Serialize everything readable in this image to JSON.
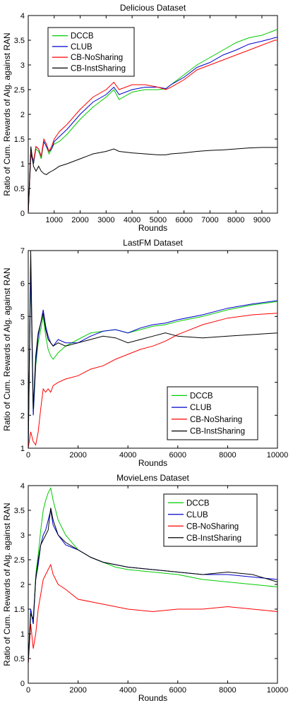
{
  "chart_data": [
    {
      "type": "line",
      "title": "Delicious Dataset",
      "xlabel": "Rounds",
      "ylabel": "Ratio of Cum. Rewards of Alg. against RAN",
      "xlim": [
        0,
        9600
      ],
      "ylim": [
        0,
        4
      ],
      "xticks": [
        1000,
        2000,
        3000,
        4000,
        5000,
        6000,
        7000,
        8000,
        9000
      ],
      "yticks": [
        0,
        0.5,
        1,
        1.5,
        2,
        2.5,
        3,
        3.5,
        4
      ],
      "grid": false,
      "legend_position": "top-left",
      "series": [
        {
          "name": "DCCB",
          "color": "#00cc00",
          "x": [
            0,
            100,
            200,
            300,
            400,
            500,
            600,
            700,
            800,
            900,
            1000,
            1200,
            1500,
            2000,
            2500,
            3000,
            3300,
            3500,
            4000,
            4500,
            5000,
            5300,
            5500,
            6000,
            6500,
            7000,
            7500,
            8000,
            8500,
            9000,
            9500,
            9600
          ],
          "y": [
            0.0,
            1.2,
            1.0,
            1.3,
            1.25,
            1.1,
            1.45,
            1.35,
            1.2,
            1.3,
            1.4,
            1.45,
            1.6,
            1.9,
            2.15,
            2.35,
            2.5,
            2.3,
            2.45,
            2.5,
            2.5,
            2.52,
            2.6,
            2.8,
            3.0,
            3.15,
            3.3,
            3.45,
            3.55,
            3.6,
            3.7,
            3.72
          ]
        },
        {
          "name": "CLUB",
          "color": "#0000cc",
          "x": [
            0,
            100,
            200,
            300,
            400,
            500,
            600,
            700,
            800,
            900,
            1000,
            1200,
            1500,
            2000,
            2500,
            3000,
            3300,
            3500,
            4000,
            4500,
            5000,
            5300,
            5500,
            6000,
            6500,
            7000,
            7500,
            8000,
            8500,
            9000,
            9500,
            9600
          ],
          "y": [
            0.0,
            1.2,
            1.0,
            1.35,
            1.3,
            1.15,
            1.45,
            1.35,
            1.25,
            1.3,
            1.45,
            1.55,
            1.7,
            2.0,
            2.25,
            2.4,
            2.55,
            2.4,
            2.5,
            2.55,
            2.55,
            2.52,
            2.6,
            2.75,
            2.95,
            3.05,
            3.2,
            3.3,
            3.42,
            3.48,
            3.55,
            3.56
          ]
        },
        {
          "name": "CB-NoSharing",
          "color": "#ff0000",
          "x": [
            0,
            100,
            200,
            300,
            400,
            500,
            600,
            700,
            800,
            900,
            1000,
            1200,
            1500,
            2000,
            2500,
            3000,
            3300,
            3500,
            4000,
            4500,
            5000,
            5300,
            5500,
            6000,
            6500,
            7000,
            7500,
            8000,
            8500,
            9000,
            9500,
            9600
          ],
          "y": [
            0.0,
            1.25,
            1.05,
            1.35,
            1.3,
            1.15,
            1.5,
            1.4,
            1.25,
            1.35,
            1.5,
            1.65,
            1.8,
            2.1,
            2.35,
            2.5,
            2.65,
            2.5,
            2.6,
            2.6,
            2.55,
            2.5,
            2.55,
            2.7,
            2.9,
            3.0,
            3.1,
            3.2,
            3.3,
            3.4,
            3.5,
            3.5
          ]
        },
        {
          "name": "CB-InstSharing",
          "color": "#000000",
          "x": [
            0,
            100,
            200,
            300,
            400,
            500,
            600,
            700,
            800,
            900,
            1000,
            1200,
            1500,
            2000,
            2500,
            3000,
            3300,
            3500,
            4000,
            4500,
            5000,
            5300,
            5500,
            6000,
            6500,
            7000,
            7500,
            8000,
            8500,
            9000,
            9500,
            9600
          ],
          "y": [
            0.0,
            1.35,
            0.95,
            0.85,
            0.95,
            0.85,
            0.8,
            0.78,
            0.82,
            0.85,
            0.88,
            0.95,
            1.0,
            1.1,
            1.2,
            1.25,
            1.3,
            1.25,
            1.22,
            1.2,
            1.18,
            1.18,
            1.2,
            1.22,
            1.25,
            1.27,
            1.28,
            1.3,
            1.32,
            1.33,
            1.33,
            1.33
          ]
        }
      ]
    },
    {
      "type": "line",
      "title": "LastFM Dataset",
      "xlabel": "Rounds",
      "ylabel": "Ratio of Cum. Rewards of Alg. against RAN",
      "xlim": [
        0,
        10000
      ],
      "ylim": [
        1,
        7
      ],
      "xticks": [
        0,
        2000,
        4000,
        6000,
        8000,
        10000
      ],
      "yticks": [
        1,
        2,
        3,
        4,
        5,
        6,
        7
      ],
      "grid": false,
      "legend_position": "bottom-right",
      "series": [
        {
          "name": "DCCB",
          "color": "#00cc00",
          "x": [
            0,
            100,
            200,
            300,
            400,
            500,
            600,
            700,
            800,
            900,
            1000,
            1200,
            1500,
            2000,
            2500,
            3000,
            3500,
            4000,
            4500,
            5000,
            5500,
            6000,
            7000,
            8000,
            9000,
            10000
          ],
          "y": [
            1.0,
            6.5,
            2.0,
            3.5,
            4.2,
            4.6,
            5.0,
            4.4,
            4.0,
            3.8,
            3.7,
            3.9,
            4.1,
            4.3,
            4.5,
            4.55,
            4.6,
            4.5,
            4.6,
            4.7,
            4.75,
            4.85,
            5.0,
            5.2,
            5.35,
            5.45
          ]
        },
        {
          "name": "CLUB",
          "color": "#0000cc",
          "x": [
            0,
            100,
            200,
            300,
            400,
            500,
            600,
            700,
            800,
            900,
            1000,
            1200,
            1500,
            2000,
            2500,
            3000,
            3500,
            4000,
            4500,
            5000,
            5500,
            6000,
            7000,
            8000,
            9000,
            10000
          ],
          "y": [
            1.0,
            6.5,
            2.0,
            3.6,
            4.4,
            4.8,
            5.2,
            4.7,
            4.4,
            4.2,
            4.1,
            4.3,
            4.2,
            4.2,
            4.4,
            4.55,
            4.6,
            4.5,
            4.65,
            4.75,
            4.8,
            4.9,
            5.05,
            5.25,
            5.38,
            5.48
          ]
        },
        {
          "name": "CB-NoSharing",
          "color": "#ff0000",
          "x": [
            0,
            100,
            200,
            300,
            400,
            500,
            600,
            700,
            800,
            900,
            1000,
            1200,
            1500,
            2000,
            2500,
            3000,
            3500,
            4000,
            4500,
            5000,
            5500,
            6000,
            7000,
            8000,
            9000,
            10000
          ],
          "y": [
            1.0,
            1.5,
            1.2,
            1.1,
            1.5,
            2.2,
            2.8,
            2.7,
            2.8,
            2.7,
            2.9,
            3.0,
            3.1,
            3.2,
            3.4,
            3.5,
            3.7,
            3.85,
            4.0,
            4.1,
            4.25,
            4.45,
            4.75,
            4.95,
            5.05,
            5.1
          ]
        },
        {
          "name": "CB-InstSharing",
          "color": "#000000",
          "x": [
            0,
            100,
            200,
            300,
            400,
            500,
            600,
            700,
            800,
            900,
            1000,
            1200,
            1500,
            2000,
            2500,
            3000,
            3500,
            4000,
            4500,
            5000,
            5500,
            6000,
            7000,
            8000,
            9000,
            10000
          ],
          "y": [
            1.0,
            7.0,
            2.2,
            3.8,
            4.5,
            4.8,
            5.1,
            4.6,
            4.3,
            4.2,
            4.1,
            4.2,
            4.1,
            4.2,
            4.3,
            4.4,
            4.35,
            4.2,
            4.3,
            4.4,
            4.5,
            4.4,
            4.35,
            4.4,
            4.45,
            4.5
          ]
        }
      ]
    },
    {
      "type": "line",
      "title": "MovieLens Dataset",
      "xlabel": "Rounds",
      "ylabel": "Ratio of Cum. Rewards of Alg. against RAN",
      "xlim": [
        0,
        10000
      ],
      "ylim": [
        0,
        4
      ],
      "xticks": [
        0,
        2000,
        4000,
        6000,
        8000,
        10000
      ],
      "yticks": [
        0,
        0.5,
        1,
        1.5,
        2,
        2.5,
        3,
        3.5,
        4
      ],
      "grid": false,
      "legend_position": "top-right",
      "series": [
        {
          "name": "DCCB",
          "color": "#00cc00",
          "x": [
            0,
            100,
            200,
            300,
            400,
            500,
            600,
            700,
            800,
            900,
            1000,
            1200,
            1500,
            2000,
            2500,
            3000,
            3500,
            4000,
            5000,
            6000,
            7000,
            8000,
            9000,
            10000
          ],
          "y": [
            0.4,
            1.5,
            1.2,
            2.2,
            2.6,
            3.1,
            3.5,
            3.7,
            3.85,
            3.95,
            3.7,
            3.3,
            3.0,
            2.7,
            2.55,
            2.45,
            2.35,
            2.3,
            2.25,
            2.2,
            2.1,
            2.05,
            2.0,
            1.95
          ]
        },
        {
          "name": "CLUB",
          "color": "#0000cc",
          "x": [
            0,
            100,
            200,
            300,
            400,
            500,
            600,
            700,
            800,
            900,
            1000,
            1200,
            1500,
            2000,
            2500,
            3000,
            3500,
            4000,
            5000,
            6000,
            7000,
            8000,
            9000,
            10000
          ],
          "y": [
            0.4,
            1.5,
            1.2,
            2.1,
            2.4,
            2.8,
            3.0,
            3.1,
            3.3,
            3.5,
            3.2,
            3.0,
            2.8,
            2.7,
            2.55,
            2.45,
            2.4,
            2.35,
            2.3,
            2.25,
            2.2,
            2.2,
            2.15,
            2.1
          ]
        },
        {
          "name": "CB-NoSharing",
          "color": "#ff0000",
          "x": [
            0,
            100,
            200,
            300,
            400,
            500,
            600,
            700,
            800,
            900,
            1000,
            1200,
            1500,
            2000,
            2500,
            3000,
            3500,
            4000,
            5000,
            6000,
            7000,
            8000,
            9000,
            10000
          ],
          "y": [
            0.4,
            1.2,
            0.7,
            1.0,
            1.5,
            1.8,
            2.1,
            2.2,
            2.3,
            2.4,
            2.2,
            2.0,
            1.9,
            1.7,
            1.65,
            1.6,
            1.55,
            1.5,
            1.45,
            1.5,
            1.5,
            1.55,
            1.5,
            1.45
          ]
        },
        {
          "name": "CB-InstSharing",
          "color": "#000000",
          "x": [
            0,
            100,
            200,
            300,
            400,
            500,
            600,
            700,
            800,
            900,
            1000,
            1200,
            1500,
            2000,
            2500,
            3000,
            3500,
            4000,
            5000,
            6000,
            7000,
            8000,
            9000,
            10000
          ],
          "y": [
            0.4,
            1.4,
            1.3,
            2.1,
            2.5,
            2.8,
            2.9,
            3.0,
            3.1,
            3.55,
            3.3,
            3.0,
            2.85,
            2.7,
            2.55,
            2.45,
            2.4,
            2.35,
            2.3,
            2.25,
            2.2,
            2.25,
            2.2,
            2.05
          ]
        }
      ]
    }
  ]
}
